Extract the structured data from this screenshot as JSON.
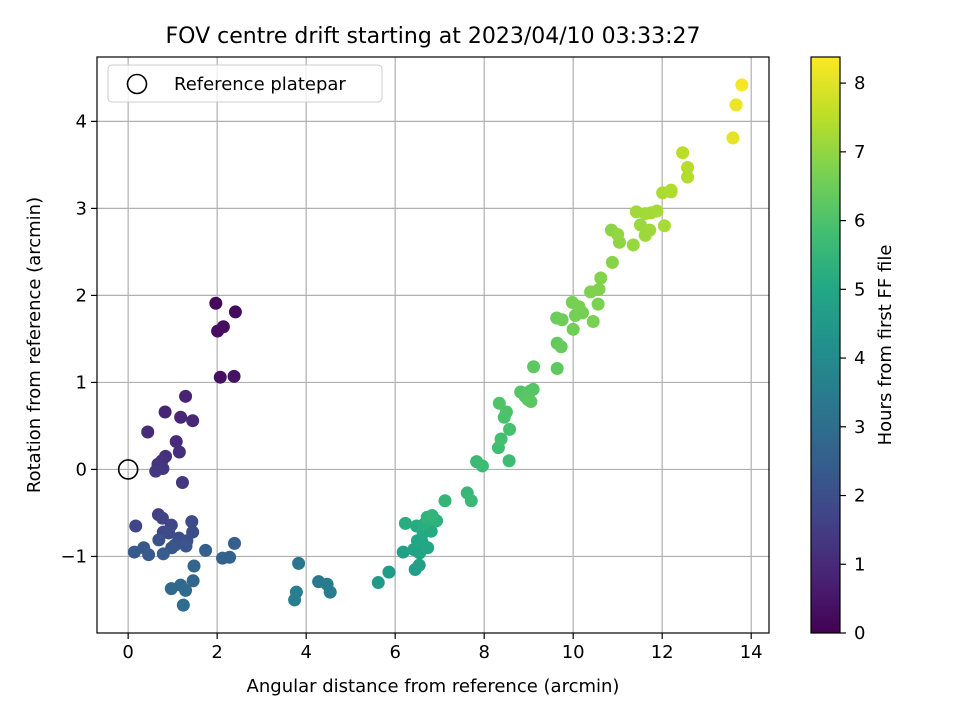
{
  "chart_data": {
    "type": "scatter",
    "title": "FOV centre drift starting at 2023/04/10 03:33:27",
    "xlabel": "Angular distance from reference (arcmin)",
    "ylabel": "Rotation from reference (arcmin)",
    "xlim": [
      -0.7,
      14.4
    ],
    "ylim": [
      -1.88,
      4.74
    ],
    "xticks": [
      0,
      2,
      4,
      6,
      8,
      10,
      12,
      14
    ],
    "yticks": [
      -1,
      0,
      1,
      2,
      3,
      4
    ],
    "grid": true,
    "legend": {
      "placement": "top-left",
      "entries": [
        "Reference platepar"
      ]
    },
    "reference_point": {
      "label": "Reference platepar",
      "x": 0,
      "y": 0
    },
    "colorbar": {
      "label": "Hours from first FF file",
      "range": [
        0,
        8.38
      ],
      "ticks": [
        0,
        1,
        2,
        3,
        4,
        5,
        6,
        7,
        8
      ],
      "colormap": "viridis"
    },
    "points": [
      {
        "x": 1.97,
        "y": 1.91,
        "h": 0.2
      },
      {
        "x": 2.41,
        "y": 1.81,
        "h": 0.25
      },
      {
        "x": 2.14,
        "y": 1.64,
        "h": 0.3
      },
      {
        "x": 2.01,
        "y": 1.59,
        "h": 0.32
      },
      {
        "x": 2.07,
        "y": 1.06,
        "h": 0.35
      },
      {
        "x": 2.38,
        "y": 1.07,
        "h": 0.4
      },
      {
        "x": 1.29,
        "y": 0.84,
        "h": 0.8
      },
      {
        "x": 0.83,
        "y": 0.66,
        "h": 0.85
      },
      {
        "x": 1.18,
        "y": 0.6,
        "h": 0.9
      },
      {
        "x": 1.45,
        "y": 0.56,
        "h": 0.95
      },
      {
        "x": 0.44,
        "y": 0.43,
        "h": 1.0
      },
      {
        "x": 1.08,
        "y": 0.32,
        "h": 1.05
      },
      {
        "x": 1.15,
        "y": 0.2,
        "h": 1.1
      },
      {
        "x": 0.84,
        "y": 0.15,
        "h": 1.15
      },
      {
        "x": 0.76,
        "y": 0.1,
        "h": 1.2
      },
      {
        "x": 0.67,
        "y": 0.06,
        "h": 1.25
      },
      {
        "x": 0.78,
        "y": 0.01,
        "h": 1.3
      },
      {
        "x": 0.62,
        "y": -0.02,
        "h": 1.35
      },
      {
        "x": 1.22,
        "y": -0.15,
        "h": 1.4
      },
      {
        "x": 0.68,
        "y": -0.52,
        "h": 1.6
      },
      {
        "x": 0.77,
        "y": -0.56,
        "h": 1.65
      },
      {
        "x": 0.97,
        "y": -0.64,
        "h": 1.7
      },
      {
        "x": 0.17,
        "y": -0.65,
        "h": 1.75
      },
      {
        "x": 0.79,
        "y": -0.72,
        "h": 1.8
      },
      {
        "x": 0.91,
        "y": -0.73,
        "h": 1.85
      },
      {
        "x": 1.43,
        "y": -0.6,
        "h": 1.9
      },
      {
        "x": 1.45,
        "y": -0.72,
        "h": 1.95
      },
      {
        "x": 1.14,
        "y": -0.79,
        "h": 2.0
      },
      {
        "x": 1.32,
        "y": -0.82,
        "h": 2.05
      },
      {
        "x": 0.69,
        "y": -0.81,
        "h": 2.1
      },
      {
        "x": 1.05,
        "y": -0.87,
        "h": 2.15
      },
      {
        "x": 1.3,
        "y": -0.88,
        "h": 2.2
      },
      {
        "x": 0.98,
        "y": -0.9,
        "h": 2.25
      },
      {
        "x": 0.35,
        "y": -0.9,
        "h": 2.3
      },
      {
        "x": 0.14,
        "y": -0.95,
        "h": 2.35
      },
      {
        "x": 0.46,
        "y": -0.98,
        "h": 2.4
      },
      {
        "x": 0.79,
        "y": -0.97,
        "h": 2.45
      },
      {
        "x": 1.74,
        "y": -0.93,
        "h": 2.5
      },
      {
        "x": 2.39,
        "y": -0.85,
        "h": 2.55
      },
      {
        "x": 2.12,
        "y": -1.02,
        "h": 2.6
      },
      {
        "x": 2.28,
        "y": -1.01,
        "h": 2.65
      },
      {
        "x": 1.48,
        "y": -1.11,
        "h": 2.7
      },
      {
        "x": 1.46,
        "y": -1.28,
        "h": 2.75
      },
      {
        "x": 1.18,
        "y": -1.33,
        "h": 2.8
      },
      {
        "x": 0.97,
        "y": -1.37,
        "h": 2.85
      },
      {
        "x": 1.29,
        "y": -1.39,
        "h": 2.9
      },
      {
        "x": 1.24,
        "y": -1.56,
        "h": 2.95
      },
      {
        "x": 3.83,
        "y": -1.08,
        "h": 3.3
      },
      {
        "x": 4.28,
        "y": -1.29,
        "h": 3.4
      },
      {
        "x": 4.47,
        "y": -1.32,
        "h": 3.45
      },
      {
        "x": 4.54,
        "y": -1.41,
        "h": 3.5
      },
      {
        "x": 3.78,
        "y": -1.41,
        "h": 3.55
      },
      {
        "x": 3.74,
        "y": -1.5,
        "h": 3.6
      },
      {
        "x": 5.62,
        "y": -1.3,
        "h": 4.55
      },
      {
        "x": 5.86,
        "y": -1.18,
        "h": 4.6
      },
      {
        "x": 6.45,
        "y": -1.15,
        "h": 4.65
      },
      {
        "x": 6.54,
        "y": -1.1,
        "h": 4.7
      },
      {
        "x": 6.18,
        "y": -0.95,
        "h": 4.75
      },
      {
        "x": 6.42,
        "y": -0.92,
        "h": 4.8
      },
      {
        "x": 6.55,
        "y": -0.96,
        "h": 4.85
      },
      {
        "x": 6.6,
        "y": -0.83,
        "h": 4.9
      },
      {
        "x": 6.73,
        "y": -0.9,
        "h": 4.95
      },
      {
        "x": 6.5,
        "y": -0.82,
        "h": 5.0
      },
      {
        "x": 6.63,
        "y": -0.73,
        "h": 5.05
      },
      {
        "x": 6.81,
        "y": -0.71,
        "h": 5.1
      },
      {
        "x": 6.48,
        "y": -0.65,
        "h": 5.15
      },
      {
        "x": 6.23,
        "y": -0.62,
        "h": 5.2
      },
      {
        "x": 6.65,
        "y": -0.63,
        "h": 5.25
      },
      {
        "x": 6.74,
        "y": -0.57,
        "h": 5.3
      },
      {
        "x": 6.93,
        "y": -0.59,
        "h": 5.35
      },
      {
        "x": 6.72,
        "y": -0.55,
        "h": 5.4
      },
      {
        "x": 6.83,
        "y": -0.53,
        "h": 5.45
      },
      {
        "x": 7.12,
        "y": -0.36,
        "h": 5.5
      },
      {
        "x": 7.62,
        "y": -0.27,
        "h": 5.55
      },
      {
        "x": 7.71,
        "y": -0.36,
        "h": 5.6
      },
      {
        "x": 7.83,
        "y": 0.09,
        "h": 5.65
      },
      {
        "x": 7.96,
        "y": 0.04,
        "h": 5.7
      },
      {
        "x": 8.56,
        "y": 0.1,
        "h": 5.75
      },
      {
        "x": 8.32,
        "y": 0.25,
        "h": 5.8
      },
      {
        "x": 8.38,
        "y": 0.35,
        "h": 5.85
      },
      {
        "x": 8.57,
        "y": 0.46,
        "h": 5.9
      },
      {
        "x": 8.45,
        "y": 0.6,
        "h": 5.95
      },
      {
        "x": 8.5,
        "y": 0.66,
        "h": 6.0
      },
      {
        "x": 8.34,
        "y": 0.76,
        "h": 6.05
      },
      {
        "x": 8.82,
        "y": 0.89,
        "h": 6.1
      },
      {
        "x": 9.03,
        "y": 0.9,
        "h": 6.12
      },
      {
        "x": 9.1,
        "y": 0.92,
        "h": 6.15
      },
      {
        "x": 8.92,
        "y": 0.84,
        "h": 6.18
      },
      {
        "x": 8.99,
        "y": 0.8,
        "h": 6.2
      },
      {
        "x": 9.05,
        "y": 0.78,
        "h": 6.22
      },
      {
        "x": 9.11,
        "y": 1.18,
        "h": 6.25
      },
      {
        "x": 9.64,
        "y": 1.16,
        "h": 6.3
      },
      {
        "x": 9.64,
        "y": 1.45,
        "h": 6.35
      },
      {
        "x": 9.73,
        "y": 1.41,
        "h": 6.4
      },
      {
        "x": 9.63,
        "y": 1.74,
        "h": 6.45
      },
      {
        "x": 9.75,
        "y": 1.72,
        "h": 6.5
      },
      {
        "x": 10.0,
        "y": 1.61,
        "h": 6.55
      },
      {
        "x": 10.05,
        "y": 1.77,
        "h": 6.6
      },
      {
        "x": 10.21,
        "y": 1.8,
        "h": 6.62
      },
      {
        "x": 10.13,
        "y": 1.87,
        "h": 6.65
      },
      {
        "x": 9.98,
        "y": 1.92,
        "h": 6.68
      },
      {
        "x": 10.45,
        "y": 1.7,
        "h": 6.7
      },
      {
        "x": 10.56,
        "y": 1.9,
        "h": 6.72
      },
      {
        "x": 10.39,
        "y": 2.04,
        "h": 6.75
      },
      {
        "x": 10.58,
        "y": 2.07,
        "h": 6.78
      },
      {
        "x": 10.62,
        "y": 2.2,
        "h": 6.8
      },
      {
        "x": 10.88,
        "y": 2.38,
        "h": 6.85
      },
      {
        "x": 10.86,
        "y": 2.75,
        "h": 6.9
      },
      {
        "x": 11.04,
        "y": 2.61,
        "h": 6.95
      },
      {
        "x": 11.0,
        "y": 2.7,
        "h": 7.0
      },
      {
        "x": 11.35,
        "y": 2.58,
        "h": 7.05
      },
      {
        "x": 11.51,
        "y": 2.81,
        "h": 7.1
      },
      {
        "x": 11.62,
        "y": 2.69,
        "h": 7.12
      },
      {
        "x": 11.72,
        "y": 2.75,
        "h": 7.15
      },
      {
        "x": 11.42,
        "y": 2.96,
        "h": 7.18
      },
      {
        "x": 11.62,
        "y": 2.94,
        "h": 7.2
      },
      {
        "x": 11.75,
        "y": 2.95,
        "h": 7.22
      },
      {
        "x": 11.88,
        "y": 2.97,
        "h": 7.25
      },
      {
        "x": 12.05,
        "y": 2.8,
        "h": 7.28
      },
      {
        "x": 12.01,
        "y": 3.18,
        "h": 7.3
      },
      {
        "x": 12.2,
        "y": 3.19,
        "h": 7.35
      },
      {
        "x": 12.2,
        "y": 3.21,
        "h": 7.38
      },
      {
        "x": 12.57,
        "y": 3.36,
        "h": 7.4
      },
      {
        "x": 12.57,
        "y": 3.47,
        "h": 7.45
      },
      {
        "x": 12.46,
        "y": 3.64,
        "h": 7.5
      },
      {
        "x": 13.59,
        "y": 3.81,
        "h": 8.05
      },
      {
        "x": 13.66,
        "y": 4.19,
        "h": 8.15
      },
      {
        "x": 13.79,
        "y": 4.42,
        "h": 8.3
      }
    ]
  }
}
